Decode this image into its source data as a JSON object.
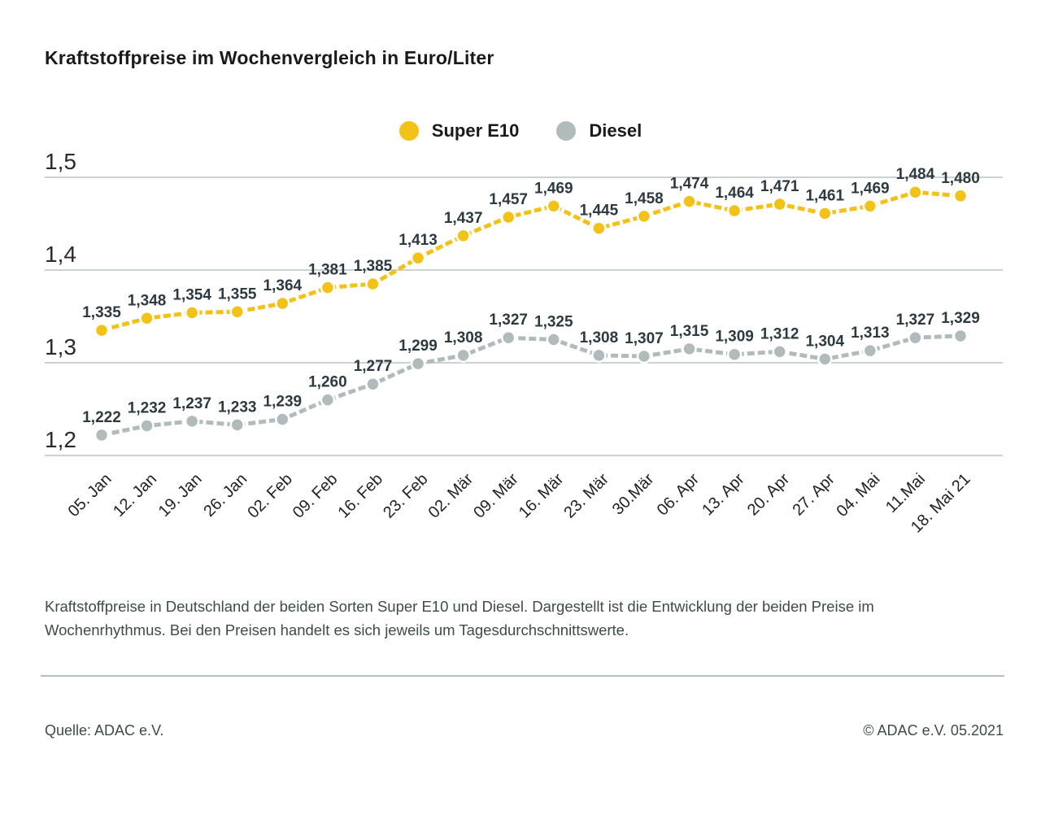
{
  "title": "Kraftstoffpreise im Wochenvergleich in Euro/Liter",
  "legend": [
    {
      "label": "Super E10",
      "color": "#f2c218"
    },
    {
      "label": "Diesel",
      "color": "#b2bbbc"
    }
  ],
  "caption": "Kraftstoffpreise in Deutschland der beiden Sorten Super E10 und Diesel. Dargestellt ist die Entwicklung der beiden Preise im Wochenrhythmus. Bei den Preisen handelt es sich jeweils um Tagesdurchschnittswerte.",
  "footer": {
    "source": "Quelle: ADAC e.V.",
    "copyright": "© ADAC e.V. 05.2021"
  },
  "chart_data": {
    "type": "line",
    "title": "Kraftstoffpreise im Wochenvergleich in Euro/Liter",
    "categories": [
      "05. Jan",
      "12. Jan",
      "19. Jan",
      "26. Jan",
      "02. Feb",
      "09. Feb",
      "16. Feb",
      "23. Feb",
      "02. Mär",
      "09. Mär",
      "16. Mär",
      "23. Mär",
      "30.Mär",
      "06. Apr",
      "13. Apr",
      "20. Apr",
      "27. Apr",
      "04. Mai",
      "11.Mai",
      "18. Mai 21"
    ],
    "series": [
      {
        "name": "Super E10",
        "color": "#f2c218",
        "values": [
          1.335,
          1.348,
          1.354,
          1.355,
          1.364,
          1.381,
          1.385,
          1.413,
          1.437,
          1.457,
          1.469,
          1.445,
          1.458,
          1.474,
          1.464,
          1.471,
          1.461,
          1.469,
          1.484,
          1.48
        ]
      },
      {
        "name": "Diesel",
        "color": "#b2bbbc",
        "values": [
          1.222,
          1.232,
          1.237,
          1.233,
          1.239,
          1.26,
          1.277,
          1.299,
          1.308,
          1.327,
          1.325,
          1.308,
          1.307,
          1.315,
          1.309,
          1.312,
          1.304,
          1.313,
          1.327,
          1.329
        ]
      }
    ],
    "ylim": [
      1.2,
      1.5
    ],
    "yticks": [
      1.2,
      1.3,
      1.4,
      1.5
    ],
    "grid": true,
    "legend_position": "top",
    "value_labels": true,
    "decimal_separator": ",",
    "colors": {
      "gridline": "#bcc3c4",
      "value_label": "#2d3a40",
      "axis_label": "#222222"
    }
  }
}
